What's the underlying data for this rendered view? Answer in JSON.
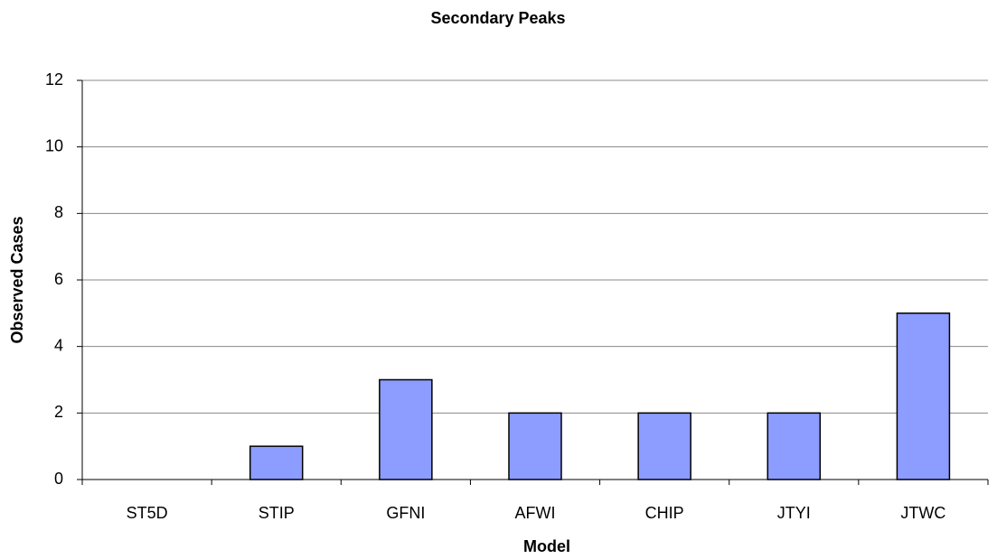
{
  "chart_data": {
    "type": "bar",
    "title": "Secondary Peaks",
    "x_label": "Model",
    "y_label": "Observed Cases",
    "categories": [
      "ST5D",
      "STIP",
      "GFNI",
      "AFWI",
      "CHIP",
      "JTYI",
      "JTWC"
    ],
    "values": [
      0,
      1,
      3,
      2,
      2,
      2,
      5
    ],
    "color": "#8c9cff",
    "ylim": [
      0,
      12
    ],
    "yticks": [
      0,
      2,
      4,
      6,
      8,
      10,
      12
    ],
    "grid": true
  }
}
